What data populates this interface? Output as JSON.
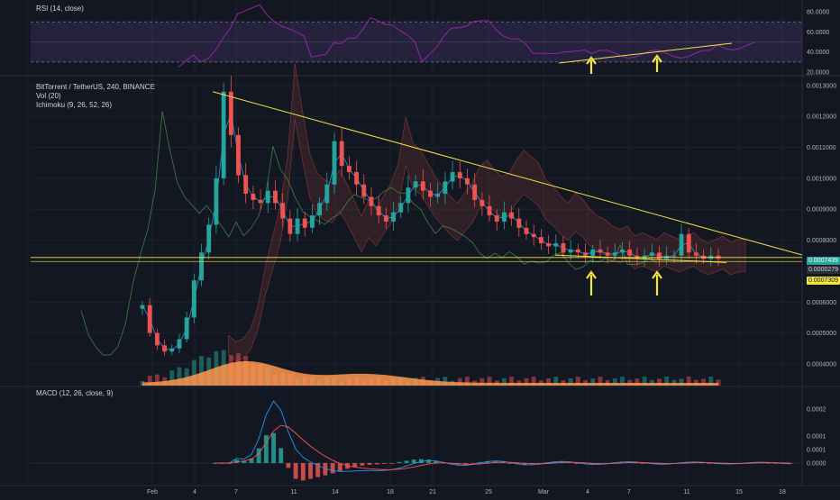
{
  "rsi_pane": {
    "legend": "RSI (14, close)",
    "ticks": [
      "80.0000",
      "60.0000",
      "40.0000",
      "20.0000"
    ]
  },
  "main_pane": {
    "legend_title": "BitTorrent / TetherUS, 240, BINANCE",
    "legend_vol": "Vol (20)",
    "legend_ichimoku": "Ichimoku (9, 26, 52, 26)",
    "price_ticks": [
      "0.0013000",
      "0.0012000",
      "0.0011000",
      "0.0010000",
      "0.0009000",
      "0.0008000",
      "0.0006000",
      "0.0005000",
      "0.0004000"
    ],
    "tags": [
      {
        "label": "0.0007439",
        "color": "#26a69a"
      },
      {
        "label": "0.0000279",
        "color": "#2a2e39"
      },
      {
        "label": "0.0007309",
        "color": "#f5e342"
      }
    ]
  },
  "macd_pane": {
    "legend": "MACD (12, 26, close, 9)",
    "ticks": [
      "0.0002",
      "0.0001",
      "0.0001",
      "0.0000"
    ]
  },
  "time_axis": {
    "labels": [
      "Feb",
      "4",
      "7",
      "11",
      "14",
      "18",
      "21",
      "25",
      "Mar",
      "4",
      "7",
      "11",
      "15",
      "18"
    ]
  },
  "colors": {
    "background": "#131722",
    "up": "#26a69a",
    "down": "#ef5350",
    "trendline": "#f5e342",
    "rsi": "#9c27b0",
    "volume_ma": "#ff9850",
    "macd_line": "#2196f3",
    "signal_line": "#ff5252"
  },
  "chart_data": {
    "type": "candlestick",
    "symbol": "BitTorrent / TetherUS, 240, BINANCE",
    "x_categories": [
      "Feb",
      "4",
      "7",
      "11",
      "14",
      "18",
      "21",
      "25",
      "Mar",
      "4",
      "7",
      "11",
      "15",
      "18"
    ],
    "price_range": [
      0.00033,
      0.00132
    ],
    "closes_approx": [
      0.00059,
      0.0005,
      0.00046,
      0.00044,
      0.00045,
      0.00048,
      0.00055,
      0.00067,
      0.00076,
      0.00085,
      0.001,
      0.00128,
      0.00114,
      0.00101,
      0.00095,
      0.00093,
      0.00092,
      0.00096,
      0.00092,
      0.00087,
      0.00082,
      0.00087,
      0.00084,
      0.00088,
      0.00092,
      0.00098,
      0.00112,
      0.00104,
      0.00102,
      0.00098,
      0.00094,
      0.00091,
      0.00088,
      0.00086,
      0.00089,
      0.00092,
      0.00097,
      0.00099,
      0.00096,
      0.00094,
      0.00095,
      0.00099,
      0.00102,
      0.001,
      0.00098,
      0.00093,
      0.00091,
      0.00088,
      0.00086,
      0.00089,
      0.00087,
      0.00084,
      0.00082,
      0.00081,
      0.00079,
      0.00078,
      0.00079,
      0.00076,
      0.00077,
      0.00076,
      0.00075,
      0.00077,
      0.00076,
      0.00075,
      0.00076,
      0.00077,
      0.00075,
      0.00074,
      0.00075,
      0.00076,
      0.00074,
      0.00075,
      0.00075,
      0.00082,
      0.00076,
      0.00075,
      0.00074,
      0.00075,
      0.00074
    ],
    "last_price": 0.0007439,
    "support_level": 0.0007309,
    "descending_resistance": [
      [
        0.00128
      ],
      [
        0.00074
      ]
    ],
    "rsi_range": [
      20,
      90
    ],
    "rsi_levels": [
      70,
      30
    ],
    "macd_range": [
      -8e-05,
      0.00028
    ],
    "annotations": [
      "arrow",
      "arrow",
      "arrow",
      "arrow"
    ]
  }
}
